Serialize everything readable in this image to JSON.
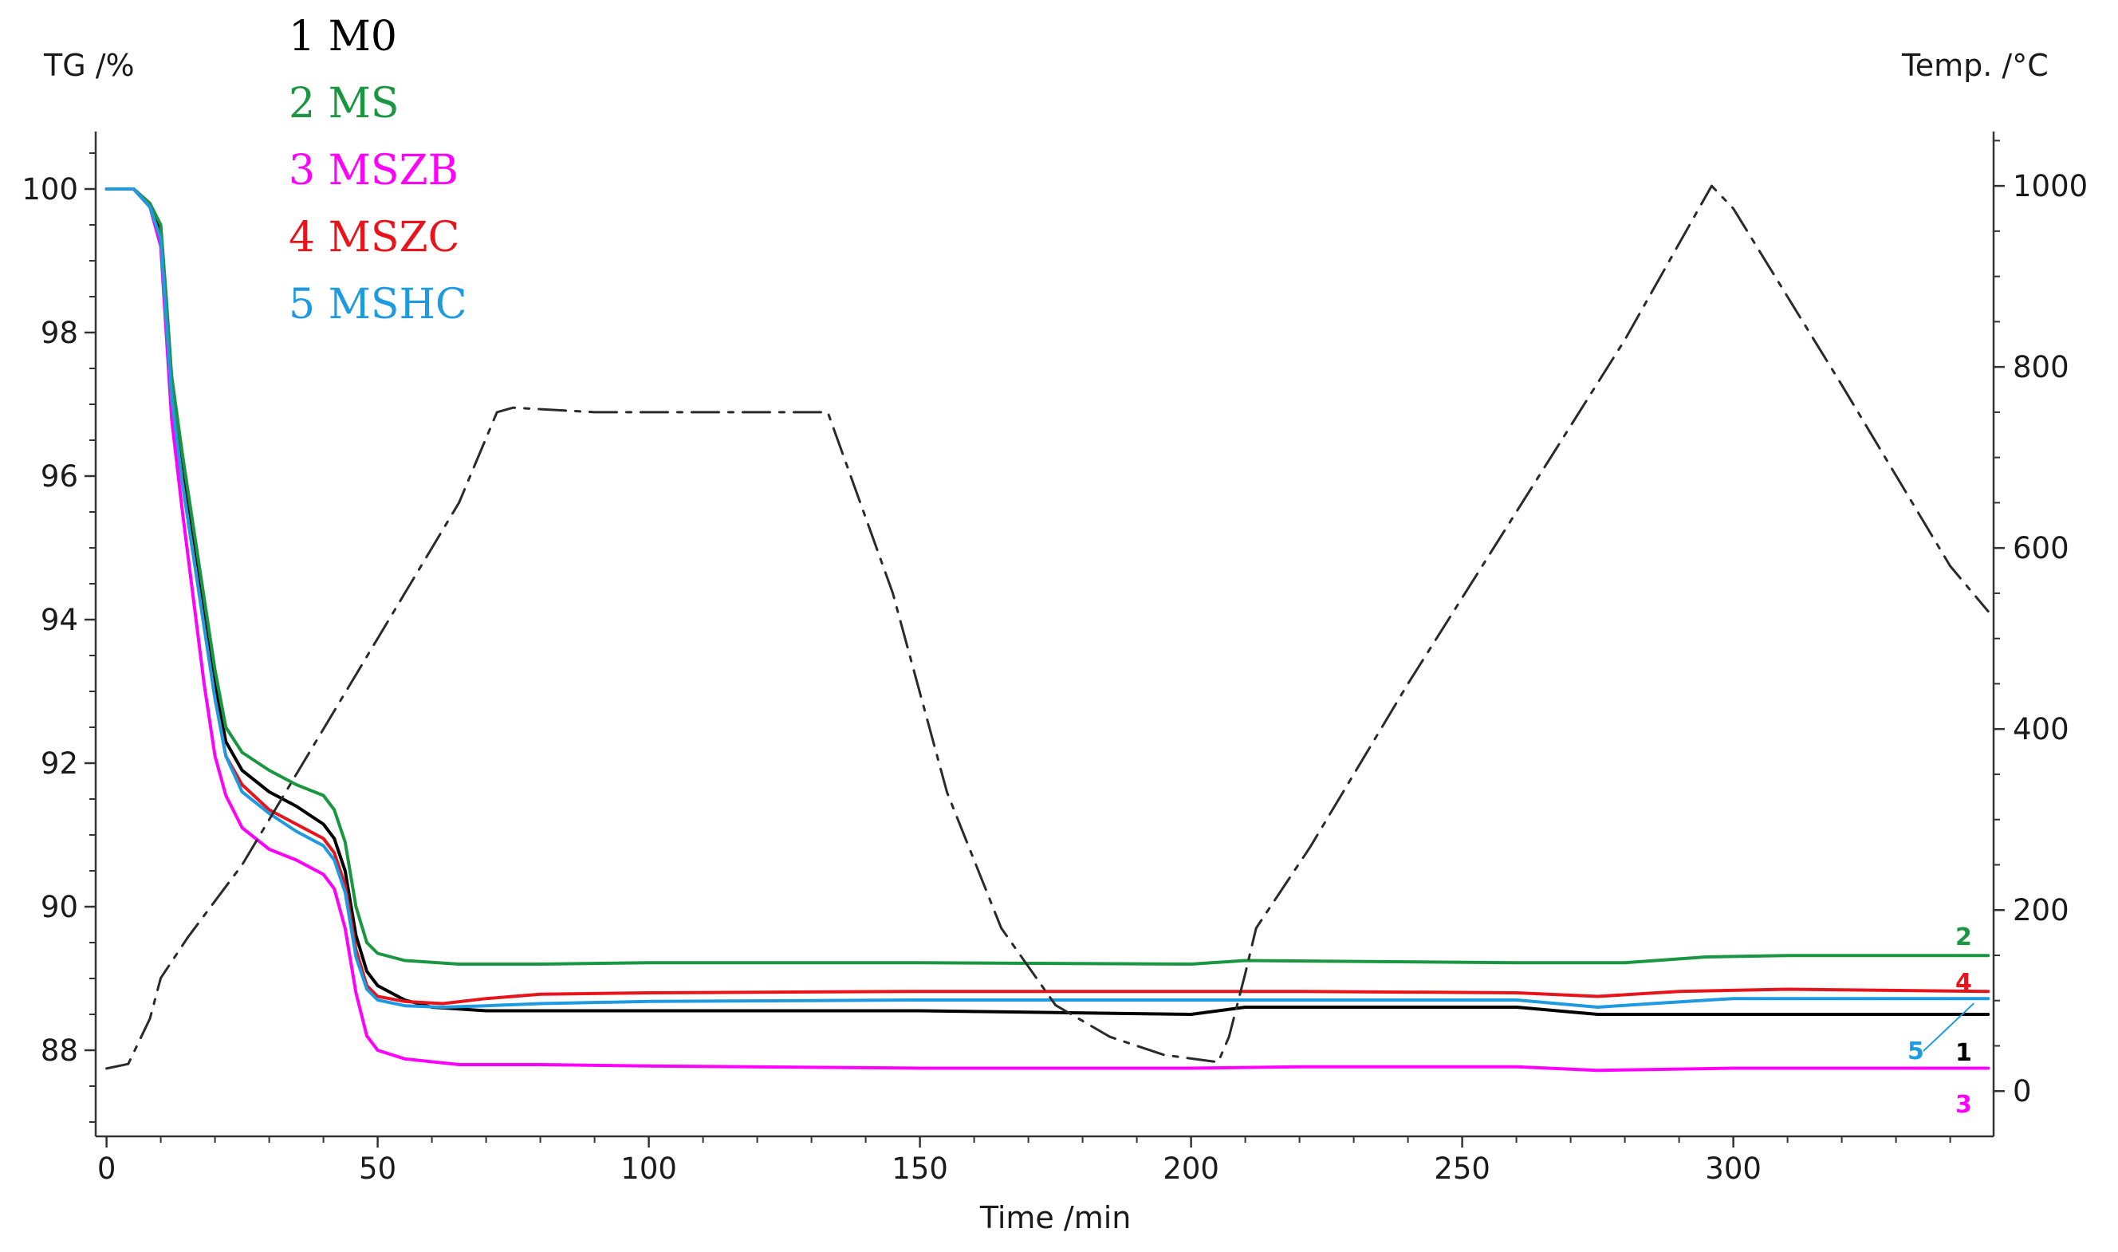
{
  "chart_data": {
    "type": "line",
    "left_axis_label": "TG /%",
    "right_axis_label": "Temp. /°C",
    "xlabel": "Time /min",
    "xlim": [
      -2,
      348
    ],
    "ylim_left": [
      86.8,
      100.8
    ],
    "ylim_right": [
      -50,
      1060
    ],
    "x_ticks": [
      0,
      50,
      100,
      150,
      200,
      250,
      300
    ],
    "y_left_ticks": [
      88,
      90,
      92,
      94,
      96,
      98,
      100
    ],
    "y_right_ticks": [
      0,
      200,
      400,
      600,
      800,
      1000
    ],
    "grid": false,
    "legend": {
      "position": "top-left",
      "entries": [
        {
          "label": "1 M0",
          "color": "#000000"
        },
        {
          "label": "2 MS",
          "color": "#1a9641"
        },
        {
          "label": "3 MSZB",
          "color": "#ff00ff"
        },
        {
          "label": "4 MSZC",
          "color": "#e8141c"
        },
        {
          "label": "5 MSHC",
          "color": "#1e9be0"
        }
      ]
    },
    "series": [
      {
        "name": "1",
        "axis": "left",
        "color": "#000000",
        "style": "solid",
        "end_label": "1",
        "points": [
          [
            0,
            100
          ],
          [
            5,
            100
          ],
          [
            8,
            99.8
          ],
          [
            10,
            99.4
          ],
          [
            11,
            98.3
          ],
          [
            12,
            97.2
          ],
          [
            14,
            96.1
          ],
          [
            16,
            95.1
          ],
          [
            18,
            94.1
          ],
          [
            20,
            93.1
          ],
          [
            22,
            92.3
          ],
          [
            25,
            91.9
          ],
          [
            30,
            91.6
          ],
          [
            35,
            91.4
          ],
          [
            40,
            91.15
          ],
          [
            42,
            90.95
          ],
          [
            44,
            90.5
          ],
          [
            46,
            89.6
          ],
          [
            48,
            89.1
          ],
          [
            50,
            88.9
          ],
          [
            55,
            88.7
          ],
          [
            60,
            88.6
          ],
          [
            70,
            88.55
          ],
          [
            100,
            88.55
          ],
          [
            150,
            88.55
          ],
          [
            200,
            88.5
          ],
          [
            210,
            88.6
          ],
          [
            260,
            88.6
          ],
          [
            275,
            88.5
          ],
          [
            300,
            88.5
          ],
          [
            347,
            88.5
          ]
        ]
      },
      {
        "name": "2",
        "axis": "left",
        "color": "#1a9641",
        "style": "solid",
        "end_label": "2",
        "points": [
          [
            0,
            100
          ],
          [
            5,
            100
          ],
          [
            8,
            99.8
          ],
          [
            10,
            99.5
          ],
          [
            11,
            98.5
          ],
          [
            12,
            97.4
          ],
          [
            14,
            96.3
          ],
          [
            16,
            95.3
          ],
          [
            18,
            94.3
          ],
          [
            20,
            93.3
          ],
          [
            22,
            92.5
          ],
          [
            25,
            92.15
          ],
          [
            30,
            91.9
          ],
          [
            35,
            91.7
          ],
          [
            40,
            91.55
          ],
          [
            42,
            91.35
          ],
          [
            44,
            90.9
          ],
          [
            46,
            90.0
          ],
          [
            48,
            89.5
          ],
          [
            50,
            89.35
          ],
          [
            55,
            89.25
          ],
          [
            65,
            89.2
          ],
          [
            80,
            89.2
          ],
          [
            100,
            89.22
          ],
          [
            150,
            89.22
          ],
          [
            200,
            89.2
          ],
          [
            210,
            89.25
          ],
          [
            260,
            89.22
          ],
          [
            280,
            89.22
          ],
          [
            295,
            89.3
          ],
          [
            310,
            89.32
          ],
          [
            347,
            89.32
          ]
        ]
      },
      {
        "name": "3",
        "axis": "left",
        "color": "#ff00ff",
        "style": "solid",
        "end_label": "3",
        "points": [
          [
            0,
            100
          ],
          [
            5,
            100
          ],
          [
            8,
            99.75
          ],
          [
            10,
            99.2
          ],
          [
            11,
            98.0
          ],
          [
            12,
            96.8
          ],
          [
            14,
            95.5
          ],
          [
            16,
            94.3
          ],
          [
            18,
            93.1
          ],
          [
            20,
            92.1
          ],
          [
            22,
            91.55
          ],
          [
            25,
            91.1
          ],
          [
            30,
            90.8
          ],
          [
            35,
            90.65
          ],
          [
            40,
            90.45
          ],
          [
            42,
            90.25
          ],
          [
            44,
            89.7
          ],
          [
            46,
            88.8
          ],
          [
            48,
            88.2
          ],
          [
            50,
            88.0
          ],
          [
            55,
            87.88
          ],
          [
            65,
            87.8
          ],
          [
            80,
            87.8
          ],
          [
            100,
            87.78
          ],
          [
            150,
            87.75
          ],
          [
            200,
            87.75
          ],
          [
            220,
            87.77
          ],
          [
            260,
            87.77
          ],
          [
            275,
            87.72
          ],
          [
            300,
            87.75
          ],
          [
            347,
            87.75
          ]
        ]
      },
      {
        "name": "4",
        "axis": "left",
        "color": "#e8141c",
        "style": "solid",
        "end_label": "4",
        "points": [
          [
            0,
            100
          ],
          [
            5,
            100
          ],
          [
            8,
            99.75
          ],
          [
            10,
            99.3
          ],
          [
            11,
            98.2
          ],
          [
            12,
            97.1
          ],
          [
            14,
            95.9
          ],
          [
            16,
            94.9
          ],
          [
            18,
            93.9
          ],
          [
            20,
            92.9
          ],
          [
            22,
            92.1
          ],
          [
            25,
            91.7
          ],
          [
            30,
            91.35
          ],
          [
            35,
            91.15
          ],
          [
            40,
            90.95
          ],
          [
            42,
            90.75
          ],
          [
            44,
            90.3
          ],
          [
            46,
            89.4
          ],
          [
            48,
            88.9
          ],
          [
            50,
            88.75
          ],
          [
            55,
            88.68
          ],
          [
            62,
            88.65
          ],
          [
            70,
            88.72
          ],
          [
            80,
            88.78
          ],
          [
            100,
            88.8
          ],
          [
            150,
            88.82
          ],
          [
            200,
            88.82
          ],
          [
            220,
            88.82
          ],
          [
            260,
            88.8
          ],
          [
            275,
            88.75
          ],
          [
            290,
            88.82
          ],
          [
            310,
            88.85
          ],
          [
            347,
            88.82
          ]
        ]
      },
      {
        "name": "5",
        "axis": "left",
        "color": "#1e9be0",
        "style": "solid",
        "end_label": "5",
        "points": [
          [
            0,
            100
          ],
          [
            5,
            100
          ],
          [
            8,
            99.75
          ],
          [
            10,
            99.3
          ],
          [
            11,
            98.2
          ],
          [
            12,
            97.1
          ],
          [
            14,
            95.9
          ],
          [
            16,
            94.9
          ],
          [
            18,
            93.9
          ],
          [
            20,
            92.9
          ],
          [
            22,
            92.1
          ],
          [
            25,
            91.6
          ],
          [
            30,
            91.3
          ],
          [
            35,
            91.05
          ],
          [
            40,
            90.85
          ],
          [
            42,
            90.65
          ],
          [
            44,
            90.2
          ],
          [
            46,
            89.3
          ],
          [
            48,
            88.85
          ],
          [
            50,
            88.7
          ],
          [
            55,
            88.62
          ],
          [
            62,
            88.6
          ],
          [
            70,
            88.62
          ],
          [
            80,
            88.65
          ],
          [
            100,
            88.68
          ],
          [
            150,
            88.7
          ],
          [
            200,
            88.7
          ],
          [
            220,
            88.7
          ],
          [
            260,
            88.7
          ],
          [
            275,
            88.6
          ],
          [
            285,
            88.65
          ],
          [
            300,
            88.72
          ],
          [
            347,
            88.72
          ]
        ]
      },
      {
        "name": "Temp.",
        "axis": "right",
        "color": "#2a2a2a",
        "style": "dashdot",
        "points": [
          [
            0,
            25
          ],
          [
            4,
            30
          ],
          [
            8,
            80
          ],
          [
            10,
            125
          ],
          [
            15,
            170
          ],
          [
            25,
            250
          ],
          [
            35,
            350
          ],
          [
            45,
            450
          ],
          [
            55,
            550
          ],
          [
            65,
            650
          ],
          [
            72,
            750
          ],
          [
            75,
            755
          ],
          [
            90,
            750
          ],
          [
            133,
            750
          ],
          [
            136,
            700
          ],
          [
            145,
            550
          ],
          [
            155,
            330
          ],
          [
            165,
            180
          ],
          [
            175,
            95
          ],
          [
            185,
            60
          ],
          [
            195,
            40
          ],
          [
            205,
            32
          ],
          [
            207,
            60
          ],
          [
            210,
            130
          ],
          [
            212,
            180
          ],
          [
            222,
            270
          ],
          [
            240,
            450
          ],
          [
            260,
            640
          ],
          [
            280,
            830
          ],
          [
            296,
            1000
          ],
          [
            300,
            975
          ],
          [
            320,
            780
          ],
          [
            340,
            580
          ],
          [
            347,
            530
          ]
        ]
      }
    ]
  }
}
